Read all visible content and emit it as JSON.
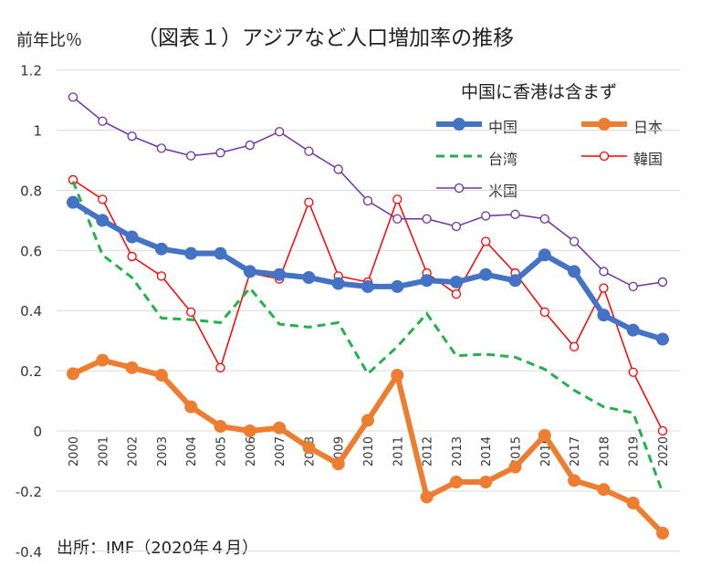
{
  "chart_data": {
    "type": "line",
    "title": "（図表１）アジアなど人口増加率の推移",
    "ylabel": "前年比％",
    "source": "出所：IMF（2020年４月）",
    "note": "中国に香港は含まず",
    "ylim": [
      -0.4,
      1.2
    ],
    "yticks": [
      "1.2",
      "1",
      "0.8",
      "0.6",
      "0.4",
      "0.2",
      "0",
      "-0.2",
      "-0.4"
    ],
    "ytick_values": [
      1.2,
      1,
      0.8,
      0.6,
      0.4,
      0.2,
      0,
      -0.2,
      -0.4
    ],
    "x": [
      "2000",
      "2001",
      "2002",
      "2003",
      "2004",
      "2005",
      "2006",
      "2007",
      "2008",
      "2009",
      "2010",
      "2011",
      "2012",
      "2013",
      "2014",
      "2015",
      "2016",
      "2017",
      "2018",
      "2019",
      "2020"
    ],
    "grid": true,
    "legend_position": "top-right",
    "series": [
      {
        "name": "中国",
        "color": "#4472C4",
        "style": "thick-marker",
        "values": [
          0.76,
          0.7,
          0.645,
          0.605,
          0.59,
          0.59,
          0.53,
          0.52,
          0.51,
          0.49,
          0.48,
          0.48,
          0.5,
          0.495,
          0.52,
          0.5,
          0.585,
          0.53,
          0.385,
          0.335,
          0.305
        ]
      },
      {
        "name": "日本",
        "color": "#ED7D31",
        "style": "thick-marker",
        "values": [
          0.19,
          0.235,
          0.21,
          0.185,
          0.08,
          0.015,
          0.0,
          0.01,
          -0.055,
          -0.11,
          0.035,
          0.185,
          -0.22,
          -0.17,
          -0.17,
          -0.12,
          -0.015,
          -0.165,
          -0.195,
          -0.24,
          -0.34
        ]
      },
      {
        "name": "台湾",
        "color": "#22B14C",
        "style": "dashed",
        "values": [
          0.83,
          0.585,
          0.51,
          0.375,
          0.37,
          0.36,
          0.475,
          0.355,
          0.345,
          0.36,
          0.19,
          0.28,
          0.39,
          0.25,
          0.255,
          0.245,
          0.205,
          0.135,
          0.08,
          0.06,
          -0.205
        ]
      },
      {
        "name": "韓国",
        "color": "#FF0000",
        "style": "thin-circle",
        "values": [
          0.835,
          0.77,
          0.58,
          0.515,
          0.395,
          0.21,
          0.525,
          0.505,
          0.76,
          0.515,
          0.495,
          0.77,
          0.525,
          0.455,
          0.63,
          0.525,
          0.395,
          0.28,
          0.475,
          0.195,
          0.0
        ]
      },
      {
        "name": "米国",
        "color": "#7030A0",
        "style": "thin-circle",
        "values": [
          1.11,
          1.03,
          0.98,
          0.94,
          0.915,
          0.925,
          0.95,
          0.995,
          0.93,
          0.87,
          0.765,
          0.705,
          0.705,
          0.68,
          0.715,
          0.72,
          0.705,
          0.63,
          0.53,
          0.48,
          0.495
        ]
      }
    ]
  }
}
